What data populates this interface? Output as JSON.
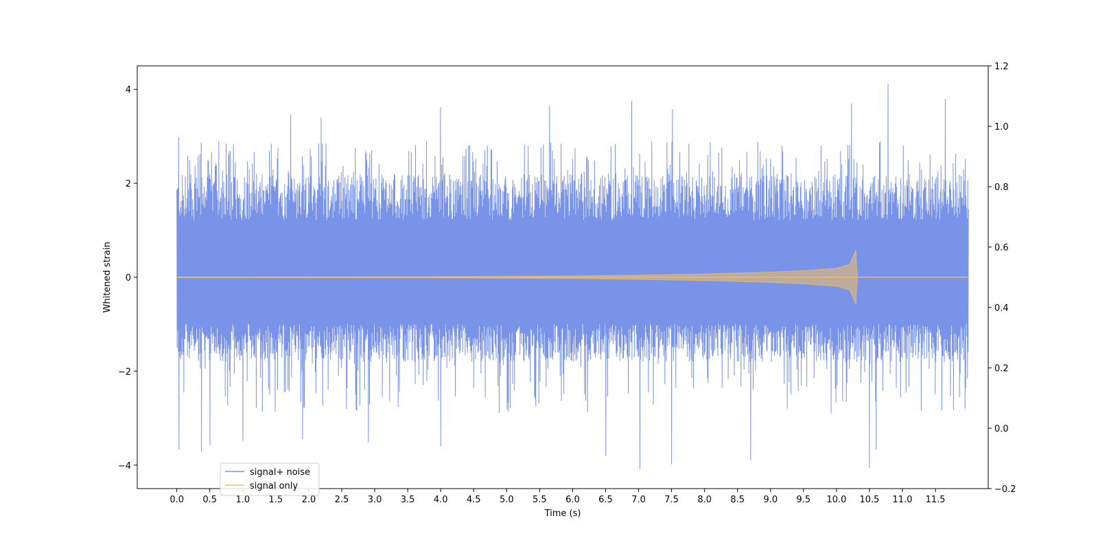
{
  "chart_data": {
    "type": "line",
    "xlabel": "Time (s)",
    "ylabel": "Whitened strain",
    "xlim": [
      -0.6,
      12.3
    ],
    "ylim": [
      -4.5,
      4.5
    ],
    "y2lim": [
      -0.2,
      1.2
    ],
    "x_ticks": [
      0.0,
      0.5,
      1.0,
      1.5,
      2.0,
      2.5,
      3.0,
      3.5,
      4.0,
      4.5,
      5.0,
      5.5,
      6.0,
      6.5,
      7.0,
      7.5,
      8.0,
      8.5,
      9.0,
      9.5,
      10.0,
      10.5,
      11.0,
      11.5
    ],
    "x_tick_labels": [
      "0.0",
      "0.5",
      "1.0",
      "1.5",
      "2.0",
      "2.5",
      "3.0",
      "3.5",
      "4.0",
      "4.5",
      "5.0",
      "5.5",
      "6.0",
      "6.5",
      "7.0",
      "7.5",
      "8.0",
      "8.5",
      "9.0",
      "9.5",
      "10.0",
      "10.5",
      "11.0",
      "11.5"
    ],
    "y_ticks": [
      -4,
      -2,
      0,
      2,
      4
    ],
    "y_tick_labels": [
      "−4",
      "−2",
      "0",
      "2",
      "4"
    ],
    "y2_ticks": [
      -0.2,
      0.0,
      0.2,
      0.4,
      0.6,
      0.8,
      1.0,
      1.2
    ],
    "y2_tick_labels": [
      "−0.2",
      "0.0",
      "0.2",
      "0.4",
      "0.6",
      "0.8",
      "1.0",
      "1.2"
    ],
    "legend": {
      "placement": "lower-left",
      "entries": [
        "signal+ noise",
        "signal only"
      ]
    },
    "grid": false,
    "series": [
      {
        "name": "signal+ noise",
        "color": "#7893e8",
        "kind": "noise",
        "x_range": [
          0.0,
          12.0
        ],
        "typical_envelope": [
          -1.8,
          2.2
        ],
        "peaks_x": [
          0.03,
          0.2,
          0.37,
          0.8,
          1.73,
          2.19,
          4.0,
          5.65,
          6.9,
          7.2,
          7.52,
          10.23,
          10.78,
          11.65
        ],
        "peaks_y": [
          2.98,
          2.5,
          2.87,
          2.67,
          3.47,
          3.4,
          3.62,
          3.65,
          3.75,
          2.9,
          3.58,
          3.7,
          4.12,
          3.8
        ],
        "troughs_x": [
          0.03,
          0.37,
          0.5,
          1.0,
          1.9,
          2.9,
          4.0,
          6.5,
          7.02,
          7.5,
          8.7,
          10.5,
          10.6
        ],
        "troughs_y": [
          -3.67,
          -3.72,
          -3.57,
          -3.48,
          -3.45,
          -3.52,
          -3.6,
          -3.8,
          -4.08,
          -3.98,
          -3.9,
          -4.05,
          -3.68
        ]
      },
      {
        "name": "signal only",
        "color": "#f5c060",
        "kind": "chirp",
        "x": [
          0.0,
          1.0,
          2.0,
          3.0,
          4.0,
          5.0,
          6.0,
          7.0,
          8.0,
          9.0,
          9.5,
          10.0,
          10.2,
          10.3,
          10.31,
          12.0
        ],
        "amplitude": [
          0.005,
          0.006,
          0.008,
          0.011,
          0.014,
          0.02,
          0.028,
          0.045,
          0.07,
          0.11,
          0.14,
          0.19,
          0.27,
          0.6,
          0.0,
          0.0
        ]
      }
    ]
  }
}
